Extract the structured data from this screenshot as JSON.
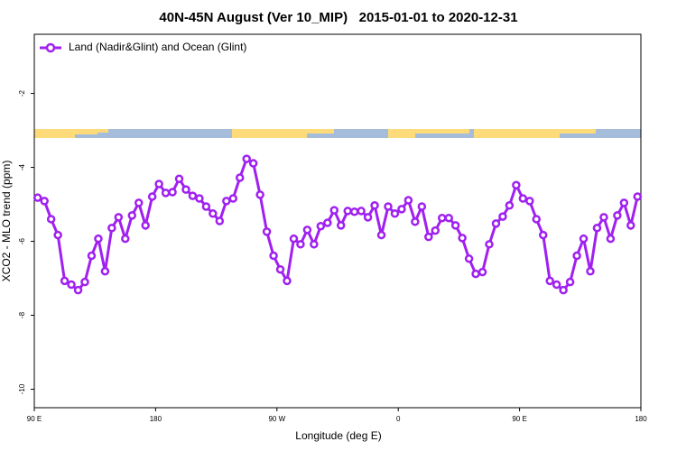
{
  "chart_data": {
    "type": "line",
    "title": "40N-45N August (Ver 10_MIP)   2015-01-01 to 2020-12-31",
    "xlabel": "Longitude (deg E)",
    "ylabel": "XCO2 - MLO trend (ppm)",
    "xlim": [
      90,
      540
    ],
    "ylim": [
      -10.5,
      -0.4
    ],
    "xticks": [
      {
        "value": 90,
        "label": "90 E"
      },
      {
        "value": 180,
        "label": "180"
      },
      {
        "value": 270,
        "label": "90 W"
      },
      {
        "value": 360,
        "label": "0"
      },
      {
        "value": 450,
        "label": "90 E"
      },
      {
        "value": 540,
        "label": "180"
      }
    ],
    "yticks": [
      -2,
      -4,
      -6,
      -8,
      -10
    ],
    "legend": "topleft",
    "x": [
      92.5,
      97.5,
      102.5,
      107.5,
      112.5,
      117.5,
      122.5,
      127.5,
      132.5,
      137.5,
      142.5,
      147.5,
      152.5,
      157.5,
      162.5,
      167.5,
      172.5,
      177.5,
      182.5,
      187.5,
      192.5,
      197.5,
      202.5,
      207.5,
      212.5,
      217.5,
      222.5,
      227.5,
      232.5,
      237.5,
      242.5,
      247.5,
      252.5,
      257.5,
      262.5,
      267.5,
      272.5,
      277.5,
      282.5,
      287.5,
      292.5,
      297.5,
      302.5,
      307.5,
      312.5,
      317.5,
      322.5,
      327.5,
      332.5,
      337.5,
      342.5,
      347.5,
      352.5,
      357.5,
      362.5,
      367.5,
      372.5,
      377.5,
      382.5,
      387.5,
      392.5,
      397.5,
      402.5,
      407.5,
      412.5,
      417.5,
      422.5,
      427.5,
      432.5,
      437.5,
      442.5,
      447.5,
      452.5,
      457.5,
      462.5,
      467.5,
      472.5,
      477.5,
      482.5,
      487.5,
      492.5,
      497.5,
      502.5,
      507.5,
      512.5,
      517.5,
      522.5,
      527.5,
      532.5,
      537.5
    ],
    "series": [
      {
        "name": "Land (Nadir&Glint) and Ocean (Glint)",
        "color": "#a020f0",
        "values": [
          -4.82,
          -4.91,
          -5.4,
          -5.83,
          -7.07,
          -7.17,
          -7.32,
          -7.1,
          -6.39,
          -5.93,
          -6.81,
          -5.64,
          -5.35,
          -5.93,
          -5.3,
          -4.96,
          -5.57,
          -4.79,
          -4.45,
          -4.69,
          -4.67,
          -4.31,
          -4.6,
          -4.77,
          -4.84,
          -5.06,
          -5.25,
          -5.45,
          -4.91,
          -4.84,
          -4.28,
          -3.77,
          -3.89,
          -4.74,
          -5.74,
          -6.39,
          -6.76,
          -7.07,
          -5.93,
          -6.08,
          -5.69,
          -6.08,
          -5.59,
          -5.5,
          -5.16,
          -5.57,
          -5.18,
          -5.2,
          -5.18,
          -5.35,
          -5.03,
          -5.83,
          -5.06,
          -5.25,
          -5.13,
          -4.89,
          -5.47,
          -5.06,
          -5.88,
          -5.71,
          -5.37,
          -5.37,
          -5.57,
          -5.91,
          -6.47,
          -6.88,
          -6.83,
          -6.08,
          -5.52,
          -5.33,
          -5.03,
          -4.48,
          -4.84,
          -4.91,
          -5.4,
          -5.83,
          -7.07,
          -7.17,
          -7.32,
          -7.1,
          -6.39,
          -5.93,
          -6.81,
          -5.64,
          -5.35,
          -5.93,
          -5.3,
          -4.96,
          -5.57,
          -4.79
        ]
      }
    ]
  }
}
